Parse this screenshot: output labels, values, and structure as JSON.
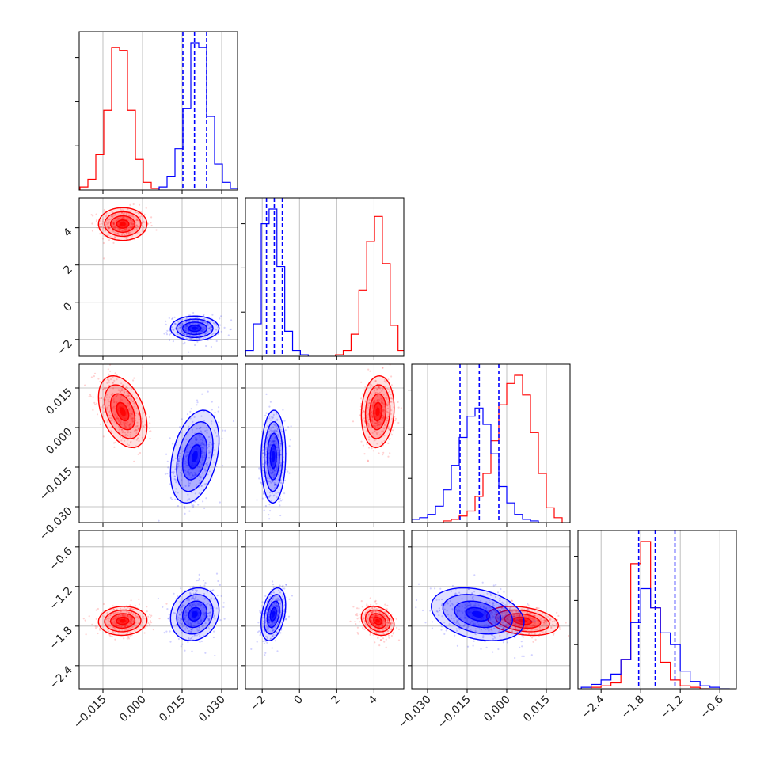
{
  "chart_data": {
    "type": "corner",
    "colors": {
      "red": "#ff0000",
      "blue": "#0000ff",
      "grid": "#b0b0b0",
      "axis": "#000000"
    },
    "parameters": [
      {
        "range": [
          -0.024,
          0.036
        ],
        "ticks": [
          -0.015,
          0.0,
          0.015,
          0.03
        ],
        "tick_labels": [
          "−0.015",
          "0.000",
          "0.015",
          "0.030"
        ]
      },
      {
        "range": [
          -2.9,
          5.6
        ],
        "ticks": [
          -2,
          0,
          2,
          4
        ],
        "tick_labels": [
          "−2",
          "0",
          "2",
          "4"
        ]
      },
      {
        "range": [
          -0.036,
          0.024
        ],
        "ticks": [
          -0.03,
          -0.015,
          0.0,
          0.015
        ],
        "tick_labels": [
          "−0.030",
          "−0.015",
          "0.000",
          "0.015"
        ]
      },
      {
        "range": [
          -2.75,
          -0.35
        ],
        "ticks": [
          -2.4,
          -1.8,
          -1.2,
          -0.6
        ],
        "tick_labels": [
          "−2.4",
          "−1.8",
          "−1.2",
          "−0.6"
        ]
      }
    ],
    "histograms": [
      {
        "param": 0,
        "quantiles_blue": [
          0.0153,
          0.0197,
          0.0243
        ],
        "red": {
          "x": [
            -0.0222,
            -0.0192,
            -0.0162,
            -0.0132,
            -0.0102,
            -0.0072,
            -0.0042,
            -0.0012,
            0.0018,
            0.0048
          ],
          "values": [
            2,
            7,
            23,
            52,
            93,
            91,
            52,
            20,
            5,
            1
          ]
        },
        "blue": {
          "x": [
            0.0078,
            0.0108,
            0.0138,
            0.0168,
            0.0198,
            0.0228,
            0.0258,
            0.0288,
            0.0318,
            0.0348
          ],
          "values": [
            2,
            9,
            27,
            53,
            96,
            93,
            48,
            17,
            5,
            1
          ]
        }
      },
      {
        "param": 1,
        "quantiles_blue": [
          -1.77,
          -1.35,
          -0.92
        ],
        "red": {
          "x": [
            2.14,
            2.56,
            2.98,
            3.4,
            3.82,
            4.24,
            4.66,
            5.08,
            5.5
          ],
          "values": [
            1,
            4,
            15,
            45,
            78,
            95,
            63,
            21,
            4
          ]
        },
        "blue": {
          "x": [
            -2.68,
            -2.26,
            -1.84,
            -1.42,
            -1.0,
            -0.58,
            -0.16,
            0.26
          ],
          "values": [
            4,
            22,
            90,
            100,
            61,
            17,
            4,
            1
          ]
        }
      },
      {
        "param": 2,
        "quantiles_blue": [
          -0.0177,
          -0.0104,
          -0.003
        ],
        "red": {
          "x": [
            -0.0225,
            -0.0195,
            -0.0165,
            -0.0135,
            -0.0105,
            -0.0075,
            -0.0045,
            -0.0015,
            0.0015,
            0.0045,
            0.0075,
            0.0105,
            0.0135,
            0.0165,
            0.0195
          ],
          "values": [
            1,
            2,
            4,
            7,
            16,
            30,
            50,
            72,
            85,
            90,
            78,
            55,
            30,
            9,
            3
          ]
        },
        "blue": {
          "x": [
            -0.0345,
            -0.0315,
            -0.0285,
            -0.0255,
            -0.0225,
            -0.0195,
            -0.0165,
            -0.0135,
            -0.0105,
            -0.0075,
            -0.0045,
            -0.0015,
            0.0015,
            0.0045,
            0.0075,
            0.0105
          ],
          "values": [
            2,
            3,
            5,
            10,
            20,
            35,
            52,
            65,
            70,
            60,
            42,
            22,
            12,
            5,
            2,
            1
          ]
        }
      },
      {
        "param": 3,
        "quantiles_blue": [
          -1.83,
          -1.58,
          -1.28
        ],
        "red": {
          "x": [
            -2.475,
            -2.325,
            -2.175,
            -2.025,
            -1.875,
            -1.725,
            -1.575,
            -1.425,
            -1.275,
            -1.125,
            -0.975,
            -0.825
          ],
          "values": [
            1,
            2,
            4,
            20,
            85,
            100,
            55,
            18,
            6,
            2,
            1,
            0
          ]
        },
        "blue": {
          "x": [
            -2.625,
            -2.475,
            -2.325,
            -2.175,
            -2.025,
            -1.875,
            -1.725,
            -1.575,
            -1.425,
            -1.275,
            -1.125,
            -0.975,
            -0.825,
            -0.675,
            -0.525
          ],
          "values": [
            1,
            3,
            6,
            10,
            20,
            45,
            68,
            55,
            38,
            30,
            12,
            5,
            2,
            1,
            0
          ]
        }
      }
    ],
    "joint": [
      {
        "x_param": 0,
        "y_param": 1,
        "red": {
          "center": [
            -0.0075,
            4.2
          ],
          "sd": [
            0.0046,
            0.44
          ],
          "rho": 0.0
        },
        "blue": {
          "center": [
            0.0198,
            -1.4
          ],
          "sd": [
            0.0046,
            0.33
          ],
          "rho": 0.0
        }
      },
      {
        "x_param": 0,
        "y_param": 2,
        "red": {
          "center": [
            -0.0075,
            0.006
          ],
          "sd": [
            0.0046,
            0.0068
          ],
          "rho": -0.4
        },
        "blue": {
          "center": [
            0.0198,
            -0.011
          ],
          "sd": [
            0.0046,
            0.0088
          ],
          "rho": 0.35
        }
      },
      {
        "x_param": 1,
        "y_param": 2,
        "red": {
          "center": [
            4.2,
            0.006
          ],
          "sd": [
            0.44,
            0.0068
          ],
          "rho": 0.1
        },
        "blue": {
          "center": [
            -1.4,
            -0.011
          ],
          "sd": [
            0.33,
            0.0088
          ],
          "rho": 0.05
        }
      },
      {
        "x_param": 0,
        "y_param": 3,
        "red": {
          "center": [
            -0.0075,
            -1.72
          ],
          "sd": [
            0.0046,
            0.11
          ],
          "rho": 0.05
        },
        "blue": {
          "center": [
            0.0198,
            -1.62
          ],
          "sd": [
            0.0046,
            0.2
          ],
          "rho": 0.15
        }
      },
      {
        "x_param": 1,
        "y_param": 3,
        "red": {
          "center": [
            4.2,
            -1.72
          ],
          "sd": [
            0.44,
            0.11
          ],
          "rho": -0.25
        },
        "blue": {
          "center": [
            -1.4,
            -1.62
          ],
          "sd": [
            0.33,
            0.2
          ],
          "rho": 0.35
        }
      },
      {
        "x_param": 2,
        "y_param": 3,
        "red": {
          "center": [
            0.006,
            -1.72
          ],
          "sd": [
            0.0068,
            0.11
          ],
          "rho": -0.3
        },
        "blue": {
          "center": [
            -0.011,
            -1.62
          ],
          "sd": [
            0.0088,
            0.2
          ],
          "rho": -0.3
        }
      }
    ]
  }
}
